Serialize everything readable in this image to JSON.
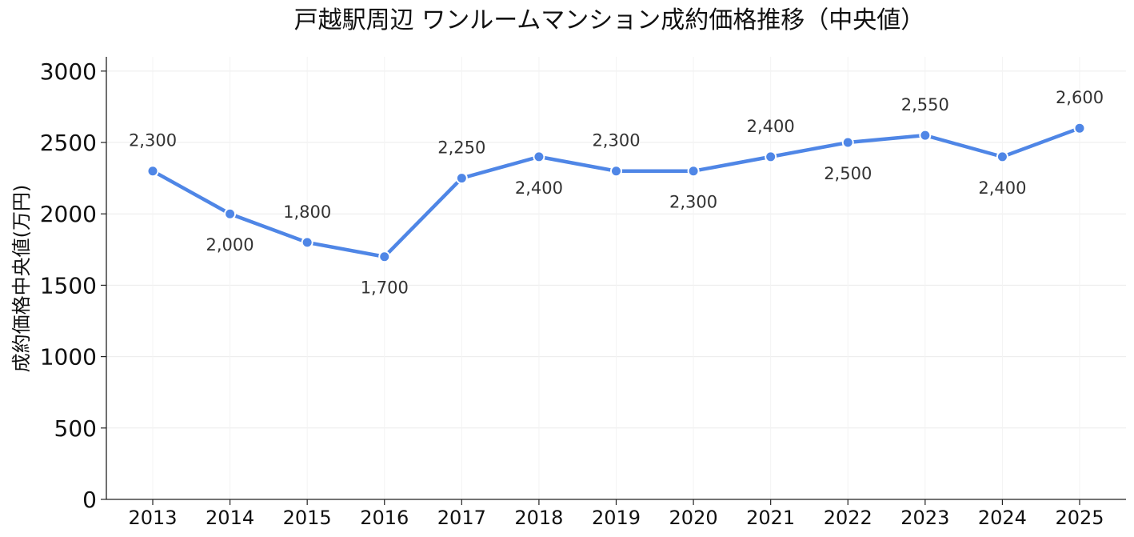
{
  "chart_data": {
    "type": "line",
    "title": "戸越駅周辺 ワンルームマンション成約価格推移（中央値）",
    "xlabel": "",
    "ylabel": "成約価格中央値(万円)",
    "categories": [
      "2013",
      "2014",
      "2015",
      "2016",
      "2017",
      "2018",
      "2019",
      "2020",
      "2021",
      "2022",
      "2023",
      "2024",
      "2025"
    ],
    "series": [
      {
        "name": "",
        "values": [
          2300,
          2000,
          1800,
          1700,
          2250,
          2400,
          2300,
          2300,
          2400,
          2500,
          2550,
          2400,
          2600
        ]
      }
    ],
    "data_labels": [
      "2,300",
      "2,000",
      "1,800",
      "1,700",
      "2,250",
      "2,400",
      "2,300",
      "2,300",
      "2,400",
      "2,500",
      "2,550",
      "2,400",
      "2,600"
    ],
    "label_positions": [
      "above",
      "below",
      "above",
      "below",
      "above",
      "below",
      "above",
      "below",
      "above",
      "below",
      "above",
      "below",
      "above"
    ],
    "y_ticks": [
      "0",
      "500",
      "1000",
      "1500",
      "2000",
      "2500",
      "3000"
    ],
    "ylim": [
      0,
      3100
    ],
    "grid": true,
    "line_color": "#4f86e6",
    "grid_color": "#ebebeb",
    "axis_color": "#222222"
  }
}
